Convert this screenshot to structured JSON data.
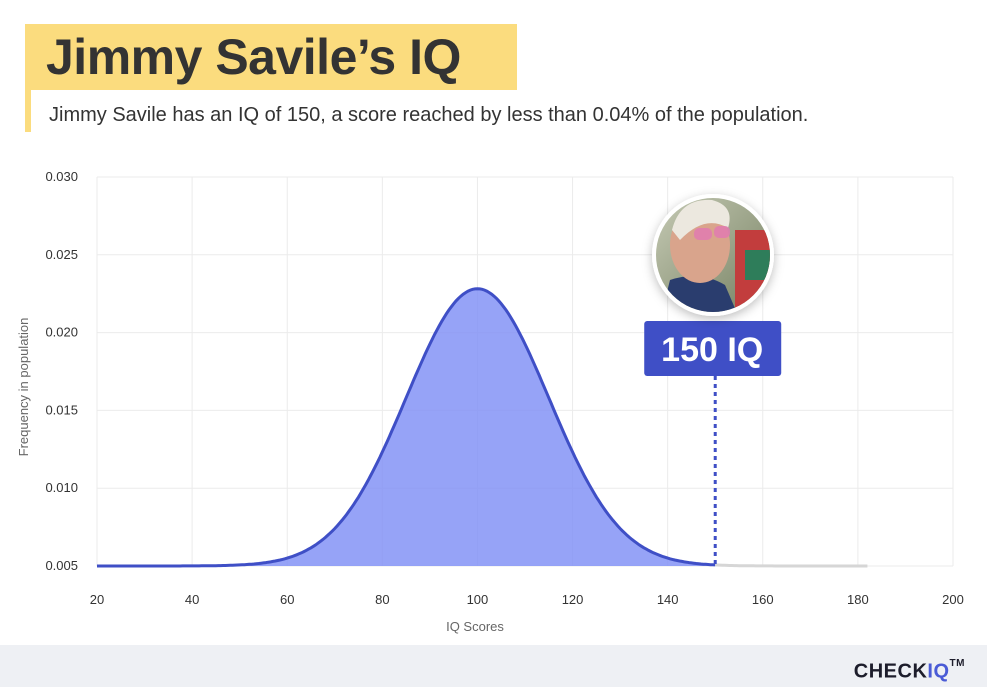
{
  "header": {
    "title": "Jimmy Savile’s IQ",
    "subtitle": "Jimmy Savile has an IQ of 150, a score reached by less than 0.04% of the population."
  },
  "colors": {
    "accent_yellow": "#fbdc7e",
    "curve_fill": "#7f8ff5",
    "curve_stroke": "#3f4fc6",
    "marker_bg": "#3f4fc6"
  },
  "chart_data": {
    "type": "area",
    "title": "",
    "xlabel": "IQ Scores",
    "ylabel": "Frequency in population",
    "xlim": [
      20,
      200
    ],
    "ylim": [
      0.005,
      0.03
    ],
    "x_ticks": [
      20,
      40,
      60,
      80,
      100,
      120,
      140,
      160,
      180,
      200
    ],
    "y_ticks": [
      "0.005",
      "0.010",
      "0.015",
      "0.020",
      "0.025",
      "0.030"
    ],
    "grid": true,
    "distribution": {
      "mean": 100,
      "sd": 15,
      "x_start": 20,
      "x_end": 182,
      "shaded_to": 150
    },
    "marker": {
      "x": 150,
      "label": "150 IQ"
    },
    "avatar_icon": "person-photo-icon"
  },
  "footer": {
    "brand_part1": "CHECK",
    "brand_part2": "IQ",
    "brand_tm": "TM"
  }
}
